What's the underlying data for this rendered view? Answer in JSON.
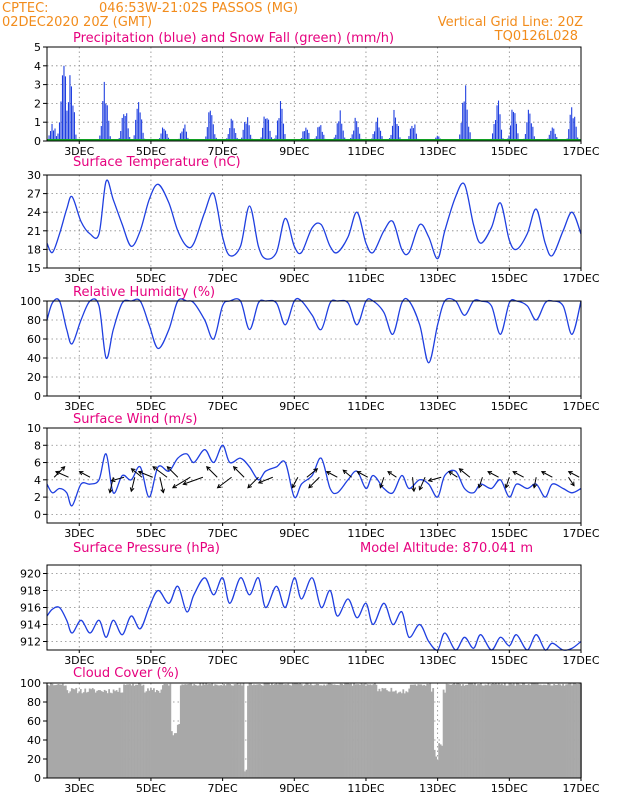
{
  "header": {
    "line1_left": "CPTEC:",
    "location": "046:53W-21:02S  PASSOS (MG)",
    "line2_left": "02DEC2020 20Z (GMT)",
    "grid_note": "Vertical Grid Line: 20Z",
    "code": "TQ0126L028"
  },
  "model_altitude": "Model Altitude: 870.041 m",
  "colors": {
    "header": "#f28c1c",
    "title": "#e6007e",
    "line": "#1f3fe0",
    "precip_bar": "#1f3fe0",
    "snow": "#10a020",
    "cloud": "#a8a8a8"
  },
  "chart_data": [
    {
      "type": "bar",
      "title": "Precipitation (blue) and Snow Fall (green) (mm/h)",
      "x_ticks": [
        "3DEC",
        "5DEC",
        "7DEC",
        "9DEC",
        "11DEC",
        "13DEC",
        "15DEC",
        "17DEC"
      ],
      "y_ticks": [
        0,
        1,
        2,
        3,
        4,
        5
      ],
      "ylim": [
        0,
        5
      ],
      "grid": true,
      "t_start_day": 2.1,
      "t_end_day": 17,
      "episodes": [
        {
          "day": 2.25,
          "peak": 1.0
        },
        {
          "day": 2.55,
          "peak": 4.9
        },
        {
          "day": 2.75,
          "peak": 4.2
        },
        {
          "day": 3.7,
          "peak": 3.6
        },
        {
          "day": 4.25,
          "peak": 2.2
        },
        {
          "day": 4.65,
          "peak": 2.7
        },
        {
          "day": 5.35,
          "peak": 0.9
        },
        {
          "day": 5.9,
          "peak": 1.0
        },
        {
          "day": 6.65,
          "peak": 2.2
        },
        {
          "day": 7.25,
          "peak": 1.6
        },
        {
          "day": 7.65,
          "peak": 1.6
        },
        {
          "day": 8.2,
          "peak": 1.9
        },
        {
          "day": 8.6,
          "peak": 2.2
        },
        {
          "day": 9.3,
          "peak": 1.0
        },
        {
          "day": 9.7,
          "peak": 1.2
        },
        {
          "day": 10.25,
          "peak": 1.8
        },
        {
          "day": 10.7,
          "peak": 1.4
        },
        {
          "day": 11.3,
          "peak": 1.6
        },
        {
          "day": 11.8,
          "peak": 1.9
        },
        {
          "day": 12.3,
          "peak": 1.2
        },
        {
          "day": 13.0,
          "peak": 0.3
        },
        {
          "day": 13.75,
          "peak": 3.6
        },
        {
          "day": 14.65,
          "peak": 2.6
        },
        {
          "day": 15.1,
          "peak": 2.1
        },
        {
          "day": 15.55,
          "peak": 2.0
        },
        {
          "day": 16.2,
          "peak": 1.0
        },
        {
          "day": 16.75,
          "peak": 2.2
        }
      ],
      "snow_values": 0
    },
    {
      "type": "line",
      "title": "Surface Temperature (nC)",
      "x_ticks": [
        "3DEC",
        "5DEC",
        "7DEC",
        "9DEC",
        "11DEC",
        "13DEC",
        "15DEC",
        "17DEC"
      ],
      "y_ticks": [
        15,
        18,
        21,
        24,
        27,
        30
      ],
      "ylim": [
        15,
        30
      ],
      "grid": true,
      "x": [
        2.1,
        2.25,
        2.45,
        2.65,
        2.8,
        3.05,
        3.3,
        3.55,
        3.75,
        3.95,
        4.2,
        4.45,
        4.7,
        4.95,
        5.2,
        5.5,
        5.75,
        6.0,
        6.2,
        6.5,
        6.75,
        7.0,
        7.2,
        7.5,
        7.75,
        8.0,
        8.2,
        8.5,
        8.75,
        9.0,
        9.2,
        9.5,
        9.75,
        10.0,
        10.2,
        10.5,
        10.75,
        11.0,
        11.2,
        11.5,
        11.75,
        12.0,
        12.2,
        12.5,
        12.75,
        13.0,
        13.2,
        13.5,
        13.75,
        14.0,
        14.2,
        14.5,
        14.75,
        15.0,
        15.2,
        15.5,
        15.75,
        16.0,
        16.2,
        16.5,
        16.75,
        17.0
      ],
      "y": [
        19,
        17.5,
        20.5,
        24.5,
        26.5,
        22.5,
        20.5,
        20.5,
        29,
        26,
        22,
        18.5,
        21,
        26,
        28.5,
        25.5,
        21,
        18.5,
        19,
        24,
        27,
        20,
        17,
        18.5,
        25,
        18.5,
        16.5,
        17.5,
        23,
        18.5,
        17.5,
        21.5,
        22,
        18.5,
        17.5,
        20,
        24,
        19,
        17.5,
        21,
        22.5,
        18,
        17.5,
        22,
        20,
        16.5,
        21,
        26.5,
        28.5,
        22,
        19,
        21.5,
        25.5,
        19.5,
        18,
        20.5,
        24.5,
        19,
        17,
        21,
        24,
        20.5
      ]
    },
    {
      "type": "line",
      "title": "Relative Humidity (%)",
      "x_ticks": [
        "3DEC",
        "5DEC",
        "7DEC",
        "9DEC",
        "11DEC",
        "13DEC",
        "15DEC",
        "17DEC"
      ],
      "y_ticks": [
        0,
        20,
        40,
        60,
        80,
        100
      ],
      "ylim": [
        0,
        100
      ],
      "grid": true,
      "x": [
        2.1,
        2.25,
        2.45,
        2.65,
        2.8,
        3.05,
        3.3,
        3.55,
        3.75,
        3.95,
        4.2,
        4.45,
        4.7,
        4.95,
        5.2,
        5.5,
        5.75,
        6.0,
        6.2,
        6.5,
        6.75,
        7.0,
        7.2,
        7.5,
        7.75,
        8.0,
        8.2,
        8.5,
        8.75,
        9.0,
        9.2,
        9.5,
        9.75,
        10.0,
        10.2,
        10.5,
        10.75,
        11.0,
        11.2,
        11.5,
        11.75,
        12.0,
        12.2,
        12.5,
        12.75,
        13.0,
        13.2,
        13.5,
        13.75,
        14.0,
        14.2,
        14.5,
        14.75,
        15.0,
        15.2,
        15.5,
        15.75,
        16.0,
        16.2,
        16.5,
        16.75,
        17.0
      ],
      "y": [
        80,
        98,
        100,
        70,
        55,
        80,
        100,
        95,
        40,
        70,
        98,
        100,
        100,
        75,
        50,
        70,
        100,
        100,
        98,
        80,
        60,
        95,
        100,
        100,
        70,
        98,
        100,
        98,
        75,
        100,
        100,
        85,
        70,
        98,
        100,
        98,
        75,
        100,
        100,
        88,
        65,
        98,
        100,
        75,
        35,
        75,
        100,
        100,
        85,
        100,
        100,
        95,
        65,
        98,
        100,
        95,
        80,
        98,
        100,
        95,
        65,
        100
      ]
    },
    {
      "type": "line",
      "title": "Surface Wind (m/s)",
      "x_ticks": [
        "3DEC",
        "5DEC",
        "7DEC",
        "9DEC",
        "11DEC",
        "13DEC",
        "15DEC",
        "17DEC"
      ],
      "y_ticks": [
        0,
        2,
        4,
        6,
        8,
        10
      ],
      "ylim": [
        -1,
        10
      ],
      "grid": true,
      "x": [
        2.1,
        2.25,
        2.45,
        2.65,
        2.8,
        3.05,
        3.3,
        3.55,
        3.75,
        3.95,
        4.2,
        4.45,
        4.7,
        4.95,
        5.2,
        5.5,
        5.75,
        6.0,
        6.2,
        6.5,
        6.75,
        7.0,
        7.2,
        7.5,
        7.75,
        8.0,
        8.2,
        8.5,
        8.75,
        9.0,
        9.2,
        9.5,
        9.75,
        10.0,
        10.2,
        10.5,
        10.75,
        11.0,
        11.2,
        11.5,
        11.75,
        12.0,
        12.2,
        12.5,
        12.75,
        13.0,
        13.2,
        13.5,
        13.75,
        14.0,
        14.2,
        14.5,
        14.75,
        15.0,
        15.2,
        15.5,
        15.75,
        16.0,
        16.2,
        16.5,
        16.75,
        17.0
      ],
      "y": [
        3.5,
        2.5,
        3.0,
        2.5,
        1.0,
        3.5,
        3.5,
        4.0,
        7.0,
        2.5,
        4.5,
        4.0,
        5.5,
        2.0,
        5.5,
        5.0,
        6.5,
        7.0,
        6.0,
        7.5,
        6.0,
        8.0,
        6.0,
        6.5,
        5.5,
        4.0,
        5.0,
        5.5,
        6.0,
        2.0,
        3.5,
        4.5,
        6.5,
        3.0,
        2.5,
        4.0,
        5.0,
        3.0,
        4.5,
        3.0,
        2.5,
        4.5,
        3.0,
        4.0,
        3.5,
        2.0,
        4.5,
        5.0,
        3.0,
        2.5,
        3.5,
        3.0,
        4.0,
        2.0,
        3.5,
        3.0,
        3.5,
        2.0,
        3.5,
        3.0,
        2.5,
        3.0
      ],
      "arrows": [
        {
          "day": 2.3,
          "u": 1.5,
          "v": 1.5
        },
        {
          "day": 2.7,
          "u": -1.8,
          "v": 0.8
        },
        {
          "day": 3.3,
          "u": -1.5,
          "v": 0.8
        },
        {
          "day": 3.95,
          "u": -0.5,
          "v": -2.2
        },
        {
          "day": 4.25,
          "u": -1.8,
          "v": -0.5
        },
        {
          "day": 4.55,
          "u": -0.5,
          "v": -2.0
        },
        {
          "day": 4.75,
          "u": -1.5,
          "v": 1.2
        },
        {
          "day": 5.05,
          "u": -2.0,
          "v": 0.8
        },
        {
          "day": 5.25,
          "u": 0.5,
          "v": -2.2
        },
        {
          "day": 5.45,
          "u": -2.0,
          "v": 1.5
        },
        {
          "day": 5.75,
          "u": -1.5,
          "v": 1.5
        },
        {
          "day": 6.1,
          "u": -2.5,
          "v": -1.5
        },
        {
          "day": 6.45,
          "u": -2.8,
          "v": -1.0
        },
        {
          "day": 6.85,
          "u": -1.5,
          "v": 1.5
        },
        {
          "day": 7.25,
          "u": -2.0,
          "v": -1.5
        },
        {
          "day": 7.6,
          "u": -1.5,
          "v": 1.5
        },
        {
          "day": 8.0,
          "u": -1.5,
          "v": -1.5
        },
        {
          "day": 8.4,
          "u": -2.0,
          "v": -0.8
        },
        {
          "day": 9.1,
          "u": -0.8,
          "v": -1.5
        },
        {
          "day": 9.35,
          "u": 1.5,
          "v": 1.2
        },
        {
          "day": 9.7,
          "u": -1.5,
          "v": -1.5
        },
        {
          "day": 10.2,
          "u": -1.5,
          "v": 0.8
        },
        {
          "day": 10.6,
          "u": -1.2,
          "v": 1.0
        },
        {
          "day": 11.05,
          "u": -1.5,
          "v": 0.8
        },
        {
          "day": 11.5,
          "u": -0.5,
          "v": -1.5
        },
        {
          "day": 11.85,
          "u": -1.2,
          "v": 0.8
        },
        {
          "day": 12.3,
          "u": 0.2,
          "v": -2.0
        },
        {
          "day": 12.65,
          "u": -0.8,
          "v": -1.8
        },
        {
          "day": 13.1,
          "u": -1.8,
          "v": -0.5
        },
        {
          "day": 13.55,
          "u": -1.2,
          "v": 0.8
        },
        {
          "day": 13.9,
          "u": -1.5,
          "v": 1.2
        },
        {
          "day": 14.25,
          "u": -0.5,
          "v": -1.5
        },
        {
          "day": 14.7,
          "u": -1.5,
          "v": 0.8
        },
        {
          "day": 15.0,
          "u": -0.5,
          "v": -1.5
        },
        {
          "day": 15.4,
          "u": -1.5,
          "v": 0.8
        },
        {
          "day": 15.75,
          "u": -0.3,
          "v": -1.5
        },
        {
          "day": 16.2,
          "u": -1.5,
          "v": 0.8
        },
        {
          "day": 16.65,
          "u": 0.8,
          "v": -1.2
        },
        {
          "day": 16.95,
          "u": -1.5,
          "v": 0.8
        }
      ]
    },
    {
      "type": "line",
      "title": "Surface Pressure (hPa)",
      "x_ticks": [
        "3DEC",
        "5DEC",
        "7DEC",
        "9DEC",
        "11DEC",
        "13DEC",
        "15DEC",
        "17DEC"
      ],
      "y_ticks": [
        912,
        914,
        916,
        918,
        920
      ],
      "ylim": [
        911,
        921
      ],
      "grid": true,
      "x": [
        2.1,
        2.25,
        2.45,
        2.65,
        2.8,
        3.05,
        3.3,
        3.55,
        3.75,
        3.95,
        4.2,
        4.45,
        4.7,
        4.95,
        5.2,
        5.5,
        5.75,
        6.0,
        6.2,
        6.5,
        6.75,
        7.0,
        7.2,
        7.5,
        7.75,
        8.0,
        8.2,
        8.5,
        8.75,
        9.0,
        9.2,
        9.5,
        9.75,
        10.0,
        10.2,
        10.5,
        10.75,
        11.0,
        11.2,
        11.5,
        11.75,
        12.0,
        12.2,
        12.5,
        12.75,
        13.0,
        13.2,
        13.5,
        13.75,
        14.0,
        14.2,
        14.5,
        14.75,
        15.0,
        15.2,
        15.5,
        15.75,
        16.0,
        16.2,
        16.5,
        16.75,
        17.0
      ],
      "y": [
        915,
        915.8,
        916,
        914.5,
        913,
        914.5,
        913,
        914.5,
        912.5,
        914.5,
        912.8,
        915,
        913.5,
        916,
        918,
        916.5,
        918.5,
        915.5,
        917.5,
        919.5,
        917.5,
        919.5,
        916.5,
        919.5,
        917.5,
        919.5,
        916,
        918.5,
        916,
        919.5,
        917,
        919.5,
        916,
        918,
        915,
        917,
        914.8,
        916.5,
        914,
        916.5,
        914,
        915.5,
        912.5,
        914,
        912,
        911,
        913,
        911,
        912.5,
        911.2,
        912.8,
        911,
        912.5,
        911.5,
        912.8,
        911,
        912.8,
        911,
        911.8,
        911,
        911.2,
        912
      ]
    },
    {
      "type": "bar",
      "title": "Cloud Cover (%)",
      "x_ticks": [
        "3DEC",
        "5DEC",
        "7DEC",
        "9DEC",
        "11DEC",
        "13DEC",
        "15DEC",
        "17DEC"
      ],
      "y_ticks": [
        0,
        20,
        40,
        60,
        80,
        100
      ],
      "ylim": [
        0,
        100
      ],
      "grid": true,
      "base_level": 92,
      "overcast_spans": [
        [
          2.1,
          2.6
        ],
        [
          4.2,
          4.8
        ],
        [
          5.3,
          7.6
        ],
        [
          7.65,
          11.3
        ],
        [
          12.2,
          12.8
        ],
        [
          13.2,
          17
        ]
      ],
      "dips": [
        {
          "day": 5.6,
          "min": 45
        },
        {
          "day": 5.68,
          "min": 38
        },
        {
          "day": 5.76,
          "min": 52
        },
        {
          "day": 7.62,
          "min": 0
        },
        {
          "day": 12.9,
          "min": 20
        },
        {
          "day": 12.98,
          "min": 10
        },
        {
          "day": 13.06,
          "min": 30
        }
      ]
    }
  ]
}
